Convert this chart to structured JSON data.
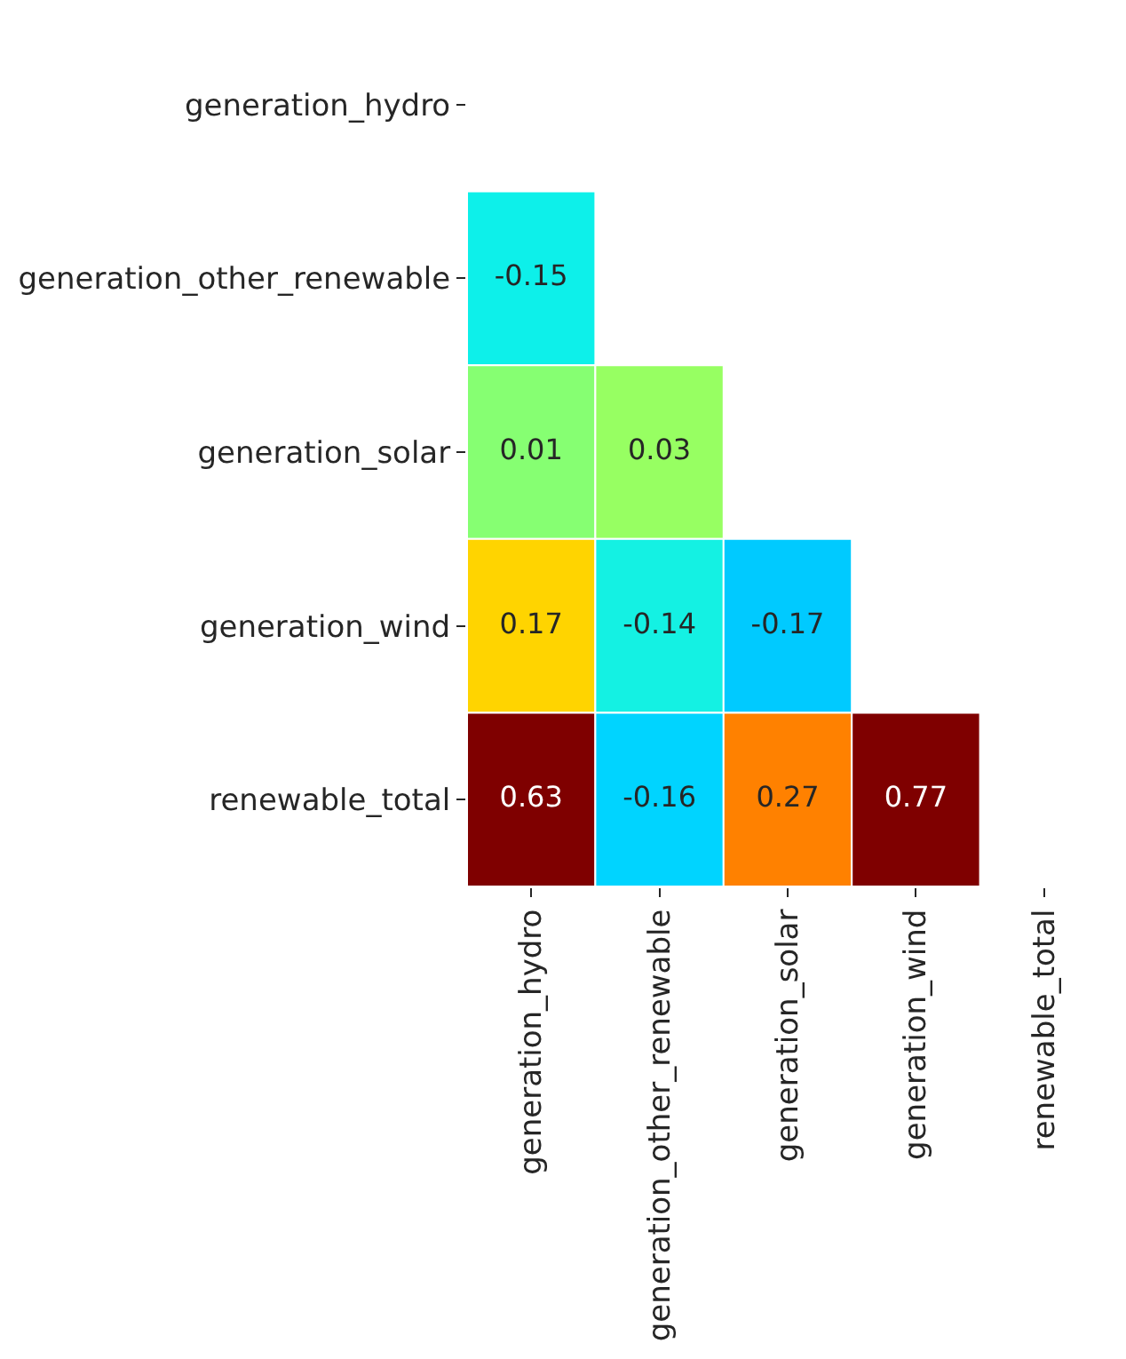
{
  "chart_data": {
    "type": "heatmap",
    "categories": [
      "generation_hydro",
      "generation_other_renewable",
      "generation_solar",
      "generation_wind",
      "renewable_total"
    ],
    "y_categories": [
      "generation_hydro",
      "generation_other_renewable",
      "generation_solar",
      "generation_wind",
      "renewable_total"
    ],
    "cells": [
      [
        null,
        null,
        null,
        null,
        null
      ],
      [
        -0.15,
        null,
        null,
        null,
        null
      ],
      [
        0.01,
        0.03,
        null,
        null,
        null
      ],
      [
        0.17,
        -0.14,
        -0.17,
        null,
        null
      ],
      [
        0.63,
        -0.16,
        0.27,
        0.77,
        null
      ]
    ],
    "data_labels": true
  }
}
